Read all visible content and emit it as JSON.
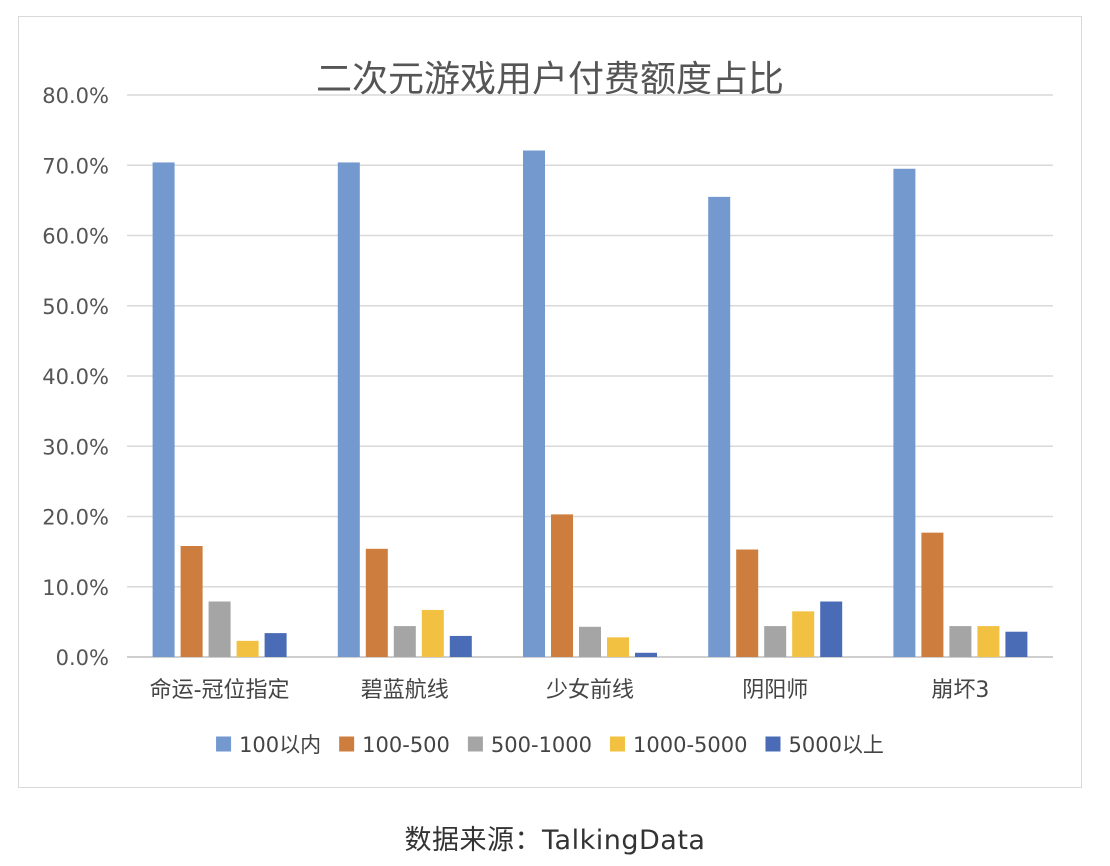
{
  "source_note": "数据来源：TalkingData",
  "chart_data": {
    "type": "bar",
    "title": "二次元游戏用户付费额度占比",
    "xlabel": "",
    "ylabel": "",
    "ylim": [
      0,
      80
    ],
    "yticks": [
      "0.0%",
      "10.0%",
      "20.0%",
      "30.0%",
      "40.0%",
      "50.0%",
      "60.0%",
      "70.0%",
      "80.0%"
    ],
    "grid": true,
    "legend_position": "bottom",
    "categories": [
      "命运-冠位指定",
      "碧蓝航线",
      "少女前线",
      "阴阳师",
      "崩坏3"
    ],
    "series": [
      {
        "name": "100以内",
        "color": "#7399cf",
        "values": [
          70.4,
          70.4,
          72.1,
          65.5,
          69.5
        ]
      },
      {
        "name": "100-500",
        "color": "#cd7d3d",
        "values": [
          15.8,
          15.4,
          20.3,
          15.3,
          17.7
        ]
      },
      {
        "name": "500-1000",
        "color": "#a5a5a5",
        "values": [
          7.9,
          4.4,
          4.3,
          4.4,
          4.4
        ]
      },
      {
        "name": "1000-5000",
        "color": "#f2c142",
        "values": [
          2.3,
          6.7,
          2.8,
          6.5,
          4.4
        ]
      },
      {
        "name": "5000以上",
        "color": "#4a6cb6",
        "values": [
          3.4,
          3.0,
          0.6,
          7.9,
          3.6
        ]
      }
    ]
  }
}
